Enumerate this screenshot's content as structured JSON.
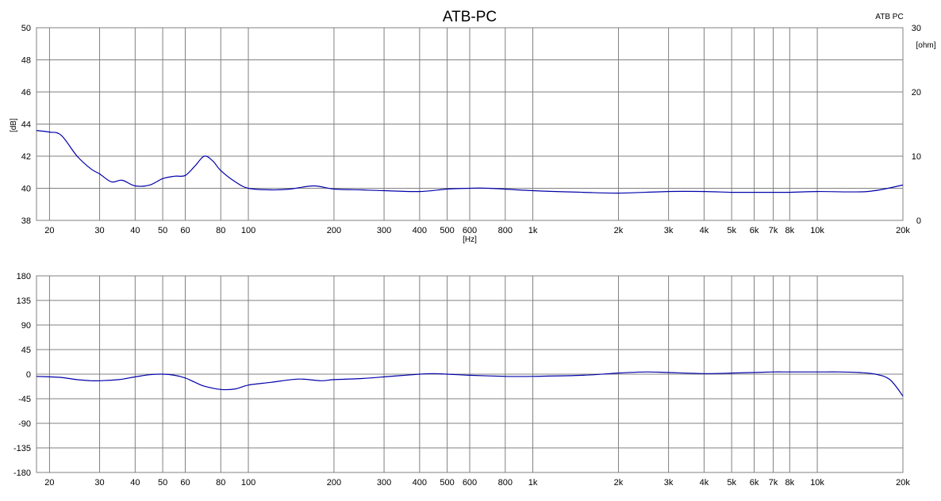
{
  "chart_data": [
    {
      "type": "line",
      "title": "ATB-PC",
      "legend": "ATB PC",
      "xlabel": "[Hz]",
      "ylabel": "[dB]",
      "y2label": "[ohm]",
      "xscale": "log",
      "xlim": [
        18,
        20000
      ],
      "ylim": [
        38,
        50
      ],
      "y2lim": [
        0,
        30
      ],
      "yticks": [
        38,
        40,
        42,
        44,
        46,
        48,
        50
      ],
      "y2ticks": [
        0,
        10,
        20,
        30
      ],
      "grid": true,
      "color": "#0000aa",
      "xtick_labels": [
        "20",
        "30",
        "40",
        "50",
        "60",
        "80",
        "100",
        "200",
        "300",
        "400",
        "500",
        "600",
        "800",
        "1k",
        "2k",
        "3k",
        "4k",
        "5k",
        "6k",
        "7k",
        "8k",
        "10k",
        "20k"
      ],
      "xtick_values": [
        20,
        30,
        40,
        50,
        60,
        80,
        100,
        200,
        300,
        400,
        500,
        600,
        800,
        1000,
        2000,
        3000,
        4000,
        5000,
        6000,
        7000,
        8000,
        10000,
        20000
      ],
      "series": [
        {
          "x": [
            18,
            20,
            22,
            25,
            28,
            30,
            33,
            36,
            40,
            45,
            50,
            55,
            60,
            65,
            70,
            75,
            80,
            90,
            100,
            120,
            140,
            170,
            200,
            250,
            300,
            400,
            500,
            600,
            700,
            1000,
            1500,
            2000,
            3000,
            4000,
            5000,
            6000,
            8000,
            10000,
            15000,
            20000
          ],
          "y": [
            43.6,
            43.5,
            43.3,
            42.0,
            41.2,
            40.9,
            40.4,
            40.5,
            40.15,
            40.2,
            40.6,
            40.75,
            40.8,
            41.4,
            42.0,
            41.7,
            41.1,
            40.4,
            40.0,
            39.9,
            39.95,
            40.15,
            39.95,
            39.9,
            39.85,
            39.8,
            39.95,
            40.0,
            40.0,
            39.85,
            39.75,
            39.7,
            39.8,
            39.8,
            39.75,
            39.75,
            39.75,
            39.8,
            39.8,
            40.2
          ]
        }
      ]
    },
    {
      "type": "line",
      "xscale": "log",
      "xlim": [
        18,
        20000
      ],
      "ylim": [
        -180,
        180
      ],
      "yticks": [
        -180,
        -135,
        -90,
        -45,
        0,
        45,
        90,
        135,
        180
      ],
      "grid": true,
      "color": "#0000aa",
      "xtick_labels": [
        "20",
        "30",
        "40",
        "50",
        "60",
        "80",
        "100",
        "200",
        "300",
        "400",
        "500",
        "600",
        "800",
        "1k",
        "2k",
        "3k",
        "4k",
        "5k",
        "6k",
        "7k",
        "8k",
        "10k",
        "20k"
      ],
      "xtick_values": [
        20,
        30,
        40,
        50,
        60,
        80,
        100,
        200,
        300,
        400,
        500,
        600,
        800,
        1000,
        2000,
        3000,
        4000,
        5000,
        6000,
        7000,
        8000,
        10000,
        20000
      ],
      "series": [
        {
          "x": [
            18,
            20,
            22,
            25,
            28,
            30,
            35,
            40,
            45,
            50,
            55,
            60,
            65,
            70,
            80,
            90,
            100,
            120,
            150,
            180,
            200,
            250,
            300,
            400,
            450,
            500,
            600,
            800,
            1000,
            1500,
            2000,
            2500,
            3000,
            4000,
            5000,
            6000,
            7000,
            8000,
            10000,
            12000,
            14000,
            16000,
            18000,
            20000
          ],
          "y": [
            -4,
            -5,
            -6,
            -10,
            -12,
            -12,
            -10,
            -5,
            -1,
            0,
            -2,
            -7,
            -15,
            -22,
            -28,
            -27,
            -20,
            -15,
            -9,
            -12,
            -10,
            -8,
            -5,
            0,
            1,
            0,
            -2,
            -4,
            -4,
            -2,
            2,
            4,
            3,
            1,
            2,
            3,
            4,
            4,
            4,
            4,
            3,
            0,
            -10,
            -40
          ]
        }
      ]
    }
  ]
}
